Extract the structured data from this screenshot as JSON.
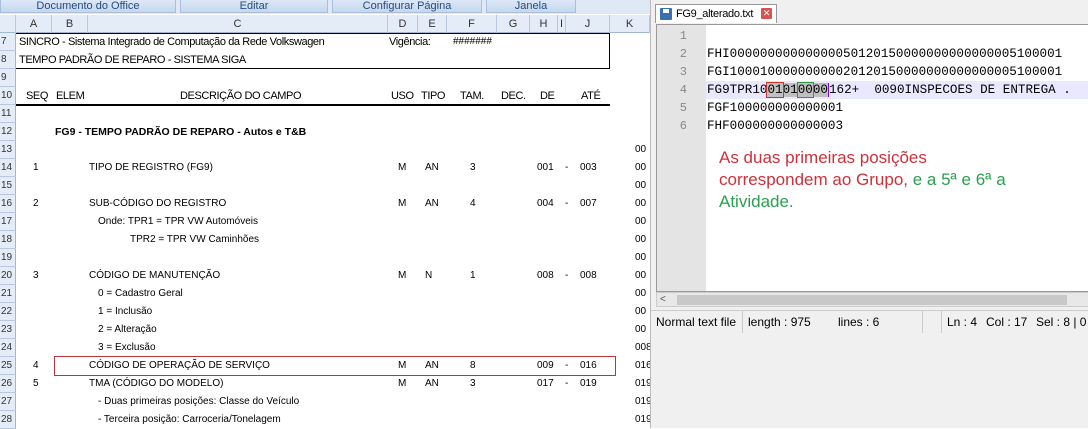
{
  "menubar": [
    "Documento do Office",
    "Editar",
    "Configurar Página",
    "Janela"
  ],
  "sheet": {
    "columns": [
      "A",
      "B",
      "C",
      "D",
      "E",
      "F",
      "G",
      "H",
      "I",
      "J",
      "K"
    ],
    "rows": [
      "7",
      "8",
      "9",
      "10",
      "11",
      "12",
      "13",
      "14",
      "15",
      "16",
      "17",
      "18",
      "19",
      "20",
      "21",
      "22",
      "23",
      "24",
      "25",
      "26",
      "27",
      "28"
    ],
    "title1": "SINCRO - Sistema Integrado de Computação da Rede Volkswagen",
    "vigencia_label": "Vigência:",
    "vigencia_value": "#######",
    "title2": "TEMPO PADRÃO DE REPARO - SISTEMA SIGA",
    "headers": {
      "seq": "SEQ",
      "elem": "ELEM",
      "desc": "DESCRIÇÃO DO CAMPO",
      "uso": "USO",
      "tipo": "TIPO",
      "tam": "TAM.",
      "dec": "DEC.",
      "de": "DE",
      "ate": "ATÉ"
    },
    "section": "FG9 - TEMPO PADRÃO DE REPARO - Autos e T&B",
    "fields": [
      {
        "row": 14,
        "seq": "1",
        "desc": "TIPO DE REGISTRO (FG9)",
        "uso": "M",
        "tipo": "AN",
        "tam": "3",
        "de": "001",
        "ate": "003"
      },
      {
        "row": 16,
        "seq": "2",
        "desc": "SUB-CÓDIGO DO REGISTRO",
        "uso": "M",
        "tipo": "AN",
        "tam": "4",
        "de": "004",
        "ate": "007"
      },
      {
        "row": 20,
        "seq": "3",
        "desc": "CÓDIGO DE MANUTENÇÃO",
        "uso": "M",
        "tipo": "N",
        "tam": "1",
        "de": "008",
        "ate": "008"
      },
      {
        "row": 25,
        "seq": "4",
        "desc": "CÓDIGO DE OPERAÇÃO DE SERVIÇO",
        "uso": "M",
        "tipo": "AN",
        "tam": "8",
        "de": "009",
        "ate": "016"
      },
      {
        "row": 26,
        "seq": "5",
        "desc": "TMA (CÓDIGO DO MODELO)",
        "uso": "M",
        "tipo": "AN",
        "tam": "3",
        "de": "017",
        "ate": "019"
      }
    ],
    "notes": [
      {
        "row": 17,
        "text": "Onde: TPR1 = TPR VW Automóveis",
        "indent": 1
      },
      {
        "row": 18,
        "text": "TPR2 = TPR VW Caminhões",
        "indent": 2
      },
      {
        "row": 21,
        "text": "0 = Cadastro Geral",
        "indent": 1
      },
      {
        "row": 22,
        "text": "1 = Inclusão",
        "indent": 1
      },
      {
        "row": 23,
        "text": "2 = Alteração",
        "indent": 1
      },
      {
        "row": 24,
        "text": "3 = Exclusão",
        "indent": 1
      },
      {
        "row": 27,
        "text": "- Duas primeiras posições: Classe do Veículo",
        "indent": 1
      },
      {
        "row": 28,
        "text": "- Terceira posição: Carroceria/Tonelagem",
        "indent": 1
      }
    ],
    "col_k": [
      {
        "row": 13,
        "v": "00"
      },
      {
        "row": 14,
        "v": "00"
      },
      {
        "row": 15,
        "v": "00"
      },
      {
        "row": 16,
        "v": "00"
      },
      {
        "row": 17,
        "v": "00"
      },
      {
        "row": 18,
        "v": "00"
      },
      {
        "row": 19,
        "v": "00"
      },
      {
        "row": 20,
        "v": "00"
      },
      {
        "row": 21,
        "v": "00"
      },
      {
        "row": 22,
        "v": "00"
      },
      {
        "row": 23,
        "v": "00"
      },
      {
        "row": 24,
        "v": "008"
      },
      {
        "row": 25,
        "v": "016"
      },
      {
        "row": 26,
        "v": "019"
      },
      {
        "row": 27,
        "v": "019"
      },
      {
        "row": 28,
        "v": "019"
      }
    ],
    "dash": "-"
  },
  "notepad": {
    "tab_title": "FG9_alterado.txt",
    "line_numbers": [
      "1",
      "2",
      "3",
      "4",
      "5",
      "6"
    ],
    "lines": [
      "",
      "FHI00000000000000050120150000000000000005100001",
      "FGI10001000000000020120150000000000000005100001",
      "",
      "FGF100000000000001",
      "FHF000000000000003"
    ],
    "line4": {
      "pre": "FG9TPR10",
      "red": "01",
      "mid": "01",
      "green": "00",
      "end": "00",
      "post": "162+  0090INSPECOES DE ENTREGA ."
    },
    "annotation": {
      "red": "As duas primeiras posições correspondem ao Grupo,",
      "green": " e a 5ª e 6ª a Atividade."
    },
    "status": {
      "type": "Normal text file",
      "length": "length : 975",
      "lines": "lines : 6",
      "ln": "Ln : 4",
      "col": "Col : 17",
      "sel": "Sel : 8 | 0"
    },
    "colors": {
      "red": "#d0303a",
      "green": "#2aa050"
    }
  }
}
